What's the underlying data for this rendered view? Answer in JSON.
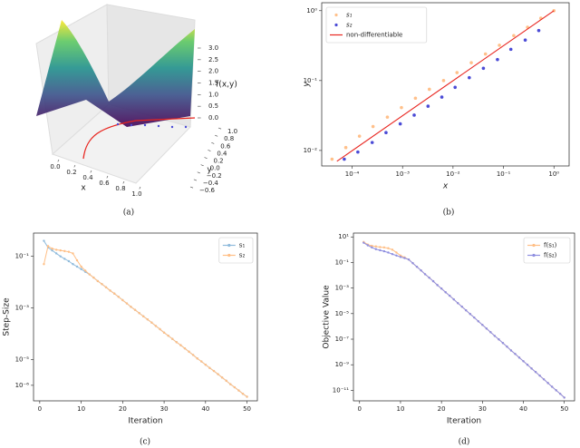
{
  "chart_data": [
    {
      "type": "surface",
      "caption": "(a)",
      "xlabel": "x",
      "ylabel": "y",
      "zlabel": "f(x,y)",
      "xlim": [
        0,
        1
      ],
      "ylim": [
        -0.6,
        1
      ],
      "zlim": [
        0,
        3
      ],
      "xticks": [
        {
          "value": 0,
          "label": "0.0"
        },
        {
          "value": 0.2,
          "label": "0.2"
        },
        {
          "value": 0.4,
          "label": "0.4"
        },
        {
          "value": 0.6,
          "label": "0.6"
        },
        {
          "value": 0.8,
          "label": "0.8"
        },
        {
          "value": 1,
          "label": "1.0"
        }
      ],
      "yticks": [
        {
          "value": -0.6,
          "label": "−0.6"
        },
        {
          "value": -0.4,
          "label": "−0.4"
        },
        {
          "value": -0.2,
          "label": "−0.2"
        },
        {
          "value": 0,
          "label": "0.0"
        },
        {
          "value": 0.2,
          "label": "0.2"
        },
        {
          "value": 0.4,
          "label": "0.4"
        },
        {
          "value": 0.6,
          "label": "0.6"
        },
        {
          "value": 0.8,
          "label": "0.8"
        },
        {
          "value": 1,
          "label": "1.0"
        }
      ],
      "zticks": [
        {
          "value": 0,
          "label": "0.0"
        },
        {
          "value": 0.5,
          "label": "0.5"
        },
        {
          "value": 1,
          "label": "1.0"
        },
        {
          "value": 1.5,
          "label": "1.5"
        },
        {
          "value": 2,
          "label": "2.0"
        },
        {
          "value": 2.5,
          "label": "2.5"
        },
        {
          "value": 3,
          "label": "3.0"
        }
      ]
    },
    {
      "type": "scatter",
      "caption": "(b)",
      "xlabel": "x",
      "ylabel": "y",
      "xscale": "log",
      "yscale": "log",
      "xlim": [
        2.5e-05,
        2
      ],
      "ylim": [
        0.006,
        1.3
      ],
      "xticks": [
        {
          "value": 0.0001,
          "label": "10⁻⁴"
        },
        {
          "value": 0.001,
          "label": "10⁻³"
        },
        {
          "value": 0.01,
          "label": "10⁻²"
        },
        {
          "value": 0.1,
          "label": "10⁻¹"
        },
        {
          "value": 1,
          "label": "10⁰"
        }
      ],
      "yticks": [
        {
          "value": 0.01,
          "label": "10⁻²"
        },
        {
          "value": 0.1,
          "label": "10⁻¹"
        },
        {
          "value": 1,
          "label": "10⁰"
        }
      ],
      "legend": "upper left",
      "series": [
        {
          "name": "s₁",
          "type": "scatter",
          "color": "#ffc08a",
          "x": [
            4e-05,
            7.5e-05,
            0.00014,
            0.00026,
            0.0005,
            0.00095,
            0.0018,
            0.0034,
            0.0065,
            0.012,
            0.023,
            0.044,
            0.083,
            0.16,
            0.3,
            0.55,
            1
          ],
          "values": [
            0.0075,
            0.011,
            0.016,
            0.022,
            0.03,
            0.041,
            0.056,
            0.075,
            0.1,
            0.13,
            0.18,
            0.24,
            0.32,
            0.44,
            0.58,
            0.78,
            1
          ]
        },
        {
          "name": "s₂",
          "type": "scatter",
          "color": "#4b4bd6",
          "x": [
            7e-05,
            0.00013,
            0.00025,
            0.00047,
            0.0009,
            0.0017,
            0.0032,
            0.006,
            0.011,
            0.021,
            0.04,
            0.076,
            0.14,
            0.27,
            0.5
          ],
          "values": [
            0.0075,
            0.0095,
            0.013,
            0.018,
            0.024,
            0.032,
            0.043,
            0.058,
            0.08,
            0.11,
            0.15,
            0.2,
            0.28,
            0.38,
            0.52
          ]
        },
        {
          "name": "non-differentiable",
          "type": "line",
          "color": "#e8251f",
          "x": [
            5e-05,
            1
          ],
          "values": [
            0.007,
            1
          ]
        }
      ]
    },
    {
      "type": "line",
      "caption": "(c)",
      "xlabel": "Iteration",
      "ylabel": "Step-Size",
      "yscale": "log",
      "xlim": [
        -1.5,
        52.5
      ],
      "ylim": [
        2.5e-07,
        0.8
      ],
      "xticks": [
        0,
        10,
        20,
        30,
        40,
        50
      ],
      "yticks": [
        {
          "value": 0.1,
          "label": "10⁻¹"
        },
        {
          "value": 0.001,
          "label": "10⁻³"
        },
        {
          "value": 1e-05,
          "label": "10⁻⁵"
        },
        {
          "value": 1e-06,
          "label": "10⁻⁶"
        }
      ],
      "legend": "upper right",
      "x": [
        1,
        2,
        3,
        4,
        5,
        6,
        7,
        8,
        9,
        10,
        11,
        12,
        13,
        14,
        15,
        16,
        17,
        18,
        19,
        20,
        21,
        22,
        23,
        24,
        25,
        26,
        27,
        28,
        29,
        30,
        31,
        32,
        33,
        34,
        35,
        36,
        37,
        38,
        39,
        40,
        41,
        42,
        43,
        44,
        45,
        46,
        47,
        48,
        49,
        50
      ],
      "series": [
        {
          "name": "s₁",
          "color": "#8fbbdc",
          "values": [
            0.4,
            0.22,
            0.17,
            0.13,
            0.1,
            0.08,
            0.065,
            0.05,
            0.04,
            0.032,
            0.025,
            0.02,
            0.015,
            0.011,
            0.0084,
            0.0063,
            0.0047,
            0.0036,
            0.0027,
            0.002,
            0.0015,
            0.0011,
            0.00084,
            0.00063,
            0.00047,
            0.00036,
            0.00027,
            0.0002,
            0.00015,
            0.00011,
            8.4e-05,
            6.3e-05,
            4.7e-05,
            3.6e-05,
            2.7e-05,
            2e-05,
            1.5e-05,
            1.1e-05,
            8.4e-06,
            6.3e-06,
            4.7e-06,
            3.6e-06,
            2.7e-06,
            2e-06,
            1.5e-06,
            1.1e-06,
            8.4e-07,
            6.3e-07,
            4.7e-07,
            3.6e-07
          ]
        },
        {
          "name": "s₂",
          "color": "#ffbf86",
          "values": [
            0.05,
            0.25,
            0.2,
            0.18,
            0.17,
            0.16,
            0.15,
            0.13,
            0.07,
            0.04,
            0.028,
            0.02,
            0.015,
            0.011,
            0.0084,
            0.0063,
            0.0047,
            0.0036,
            0.0027,
            0.002,
            0.0015,
            0.0011,
            0.00084,
            0.00063,
            0.00047,
            0.00036,
            0.00027,
            0.0002,
            0.00015,
            0.00011,
            8.4e-05,
            6.3e-05,
            4.7e-05,
            3.6e-05,
            2.7e-05,
            2e-05,
            1.5e-05,
            1.1e-05,
            8.4e-06,
            6.3e-06,
            4.7e-06,
            3.6e-06,
            2.7e-06,
            2e-06,
            1.5e-06,
            1.1e-06,
            8.4e-07,
            6.3e-07,
            4.7e-07,
            3.6e-07
          ]
        }
      ]
    },
    {
      "type": "line",
      "caption": "(d)",
      "xlabel": "Iteration",
      "ylabel": "Objective Value",
      "yscale": "log",
      "xlim": [
        -1.5,
        52.5
      ],
      "ylim": [
        1.5e-12,
        20
      ],
      "xticks": [
        0,
        10,
        20,
        30,
        40,
        50
      ],
      "yticks": [
        {
          "value": 10,
          "label": "10¹"
        },
        {
          "value": 0.1,
          "label": "10⁻¹"
        },
        {
          "value": 0.001,
          "label": "10⁻³"
        },
        {
          "value": 1e-05,
          "label": "10⁻⁵"
        },
        {
          "value": 1e-07,
          "label": "10⁻⁷"
        },
        {
          "value": 1e-09,
          "label": "10⁻⁹"
        },
        {
          "value": 1e-11,
          "label": "10⁻¹¹"
        }
      ],
      "legend": "upper right",
      "x": [
        1,
        2,
        3,
        4,
        5,
        6,
        7,
        8,
        9,
        10,
        11,
        12,
        13,
        14,
        15,
        16,
        17,
        18,
        19,
        20,
        21,
        22,
        23,
        24,
        25,
        26,
        27,
        28,
        29,
        30,
        31,
        32,
        33,
        34,
        35,
        36,
        37,
        38,
        39,
        40,
        41,
        42,
        43,
        44,
        45,
        46,
        47,
        48,
        49,
        50
      ],
      "series": [
        {
          "name": "f(s₁)",
          "color": "#ffbf86",
          "values": [
            4,
            2.5,
            2,
            1.8,
            1.6,
            1.5,
            1.3,
            1,
            0.6,
            0.35,
            0.25,
            0.17,
            0.088,
            0.046,
            0.024,
            0.012,
            0.0065,
            0.0034,
            0.0017,
            0.00091,
            0.00047,
            0.00025,
            0.00013,
            6.6e-05,
            3.5e-05,
            1.8e-05,
            9.3e-06,
            4.9e-06,
            2.5e-06,
            1.3e-06,
            6.8e-07,
            3.5e-07,
            1.8e-07,
            9.6e-08,
            5e-08,
            2.6e-08,
            1.3e-08,
            7e-09,
            3.6e-09,
            1.9e-09,
            9.9e-10,
            5.1e-10,
            2.7e-10,
            1.4e-10,
            7.2e-11,
            3.7e-11,
            1.9e-11,
            1e-11,
            5.3e-12,
            2.7e-12
          ]
        },
        {
          "name": "f(s₂)",
          "color": "#8f8fe0",
          "values": [
            3.5,
            2.2,
            1.5,
            1.1,
            0.9,
            0.75,
            0.6,
            0.45,
            0.35,
            0.27,
            0.22,
            0.17,
            0.088,
            0.046,
            0.024,
            0.012,
            0.0065,
            0.0034,
            0.0017,
            0.00091,
            0.00047,
            0.00025,
            0.00013,
            6.6e-05,
            3.5e-05,
            1.8e-05,
            9.3e-06,
            4.9e-06,
            2.5e-06,
            1.3e-06,
            6.8e-07,
            3.5e-07,
            1.8e-07,
            9.6e-08,
            5e-08,
            2.6e-08,
            1.3e-08,
            7e-09,
            3.6e-09,
            1.9e-09,
            9.9e-10,
            5.1e-10,
            2.7e-10,
            1.4e-10,
            7.2e-11,
            3.7e-11,
            1.9e-11,
            1e-11,
            5.3e-12,
            2.7e-12
          ]
        }
      ]
    }
  ]
}
